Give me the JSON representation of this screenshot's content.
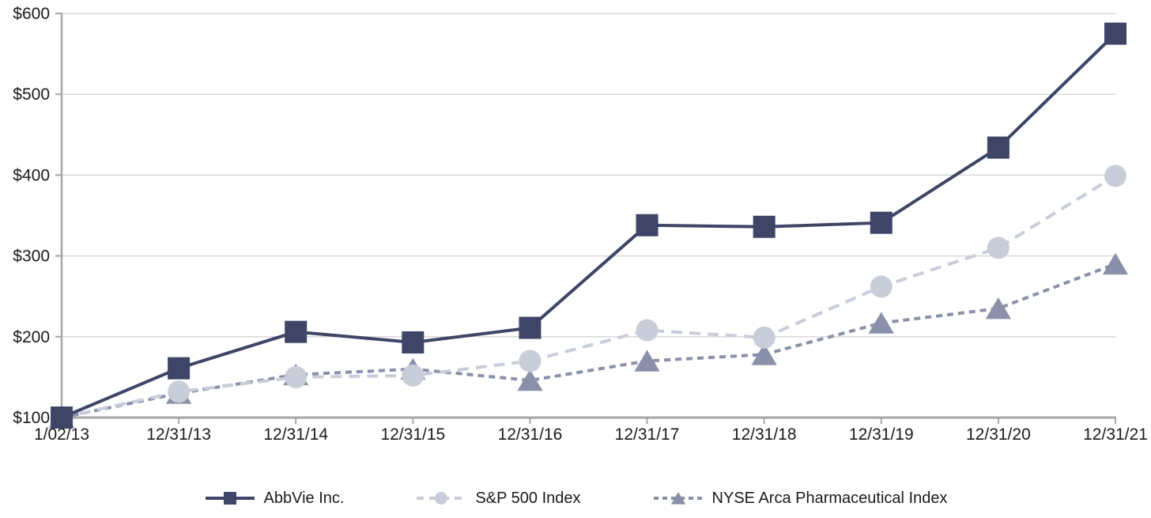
{
  "chart_data": {
    "type": "line",
    "title": "",
    "categories": [
      "1/02/13",
      "12/31/13",
      "12/31/14",
      "12/31/15",
      "12/31/16",
      "12/31/17",
      "12/31/18",
      "12/31/19",
      "12/31/20",
      "12/31/21"
    ],
    "series": [
      {
        "name": "AbbVie Inc.",
        "values": [
          100,
          161,
          206,
          193,
          211,
          338,
          336,
          341,
          434,
          575
        ],
        "color": "#3E4566",
        "marker": "square",
        "dash": "solid"
      },
      {
        "name": "S&P 500 Index",
        "values": [
          100,
          132,
          150,
          152,
          170,
          208,
          199,
          262,
          310,
          399
        ],
        "color": "#C9CDD9",
        "marker": "circle",
        "dash": "long-dash"
      },
      {
        "name": "NYSE Arca Pharmaceutical Index",
        "values": [
          100,
          130,
          153,
          160,
          146,
          170,
          178,
          217,
          235,
          290
        ],
        "color": "#8A90A9",
        "marker": "triangle",
        "dash": "short-dash"
      }
    ],
    "y_axis": {
      "min": 100,
      "max": 600,
      "step": 100,
      "tick_labels": [
        "$100",
        "$200",
        "$300",
        "$400",
        "$500",
        "$600"
      ],
      "prefix": "$"
    },
    "x_axis": {
      "tick_labels": [
        "1/02/13",
        "12/31/13",
        "12/31/14",
        "12/31/15",
        "12/31/16",
        "12/31/17",
        "12/31/18",
        "12/31/19",
        "12/31/20",
        "12/31/21"
      ]
    },
    "gridlines": true,
    "legend_position": "bottom",
    "colors": {
      "axis": "#A6A6A6",
      "gridline": "#D9D9D9",
      "text": "#1A1A1A",
      "background": "#FFFFFF"
    }
  }
}
